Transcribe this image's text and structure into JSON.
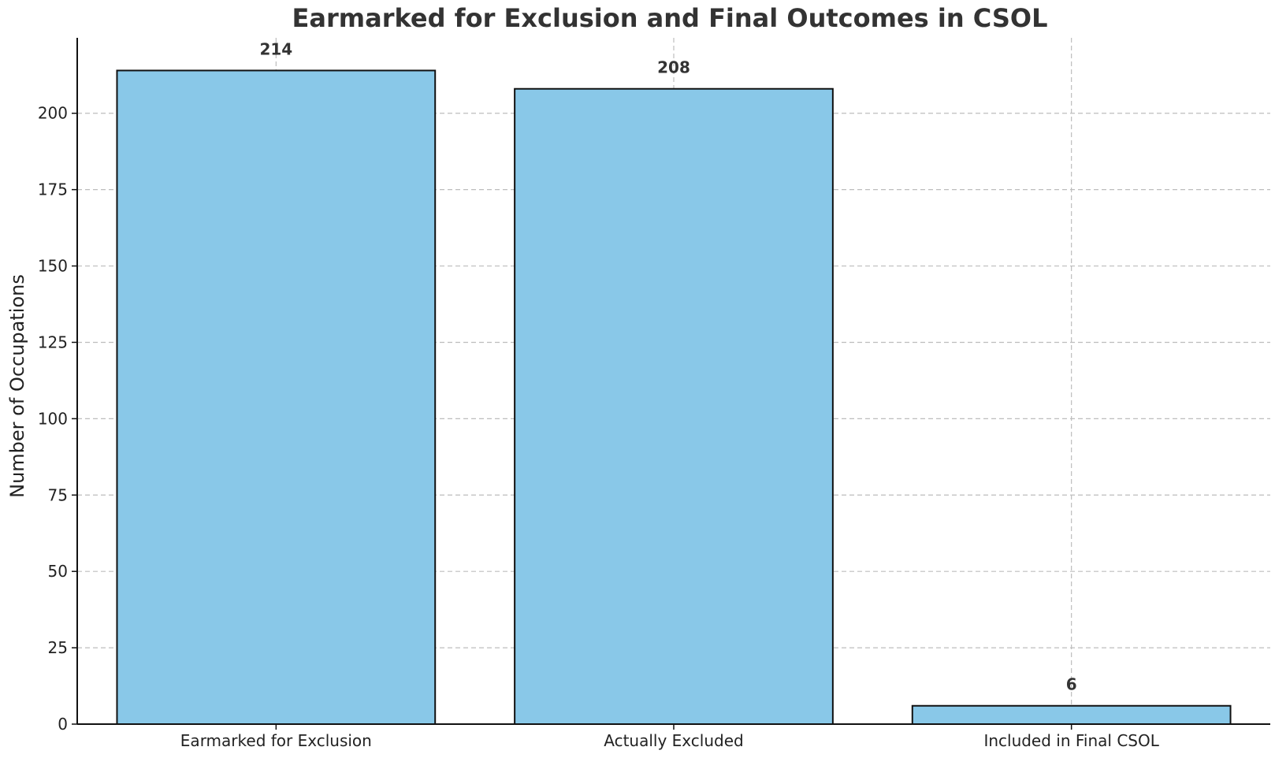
{
  "chart_data": {
    "type": "bar",
    "title": "Earmarked for Exclusion and Final Outcomes in CSOL",
    "xlabel": "",
    "ylabel": "Number of Occupations",
    "categories": [
      "Earmarked for Exclusion",
      "Actually Excluded",
      "Included in Final CSOL"
    ],
    "values": [
      214,
      208,
      6
    ],
    "value_labels": [
      "214",
      "208",
      "6"
    ],
    "ylim": [
      0,
      224.7
    ],
    "yticks": [
      0,
      25,
      50,
      75,
      100,
      125,
      150,
      175,
      200
    ],
    "ytick_labels": [
      "0",
      "25",
      "50",
      "75",
      "100",
      "125",
      "150",
      "175",
      "200"
    ],
    "grid": true,
    "bar_color": "#89c8e8",
    "edge_color": "#111111"
  }
}
